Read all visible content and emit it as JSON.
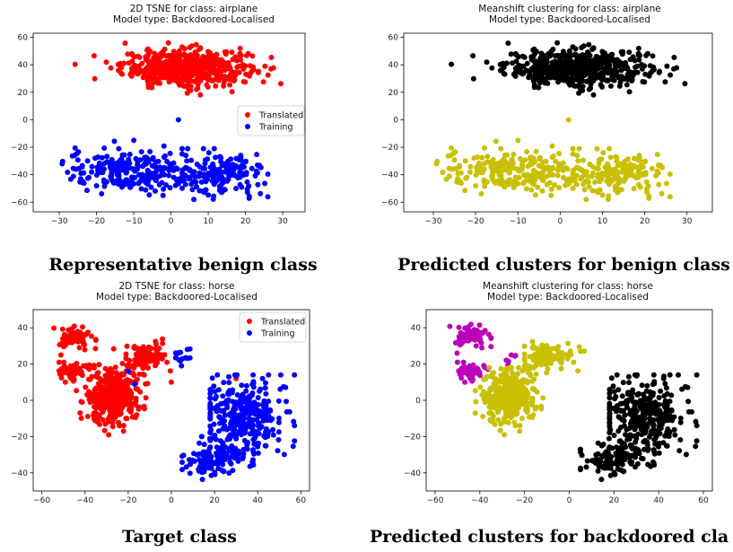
{
  "chart_data": [
    {
      "type": "scatter",
      "title": "2D TSNE for class: airplane",
      "subtitle": "Model type: Backdoored-Localised",
      "caption": "Representative benign class",
      "xlim": [
        -37,
        36
      ],
      "ylim": [
        -67,
        63
      ],
      "xticks": [
        -30,
        -20,
        -10,
        0,
        10,
        20,
        30
      ],
      "yticks": [
        60,
        40,
        20,
        0,
        -20,
        -40,
        -60
      ],
      "legend": "center-right",
      "series": [
        {
          "name": "Translated",
          "color": "#ff0000",
          "blobs": [
            {
              "cx": 4,
              "cy": 38,
              "sx": 8.5,
              "sy": 6.5,
              "xmin": -26,
              "xmax": 33,
              "ymin": 17,
              "ymax": 56,
              "n": 560
            }
          ],
          "extra": []
        },
        {
          "name": "Training",
          "color": "#0000ff",
          "blobs": [
            {
              "cx": -10,
              "cy": -38,
              "sx": 9,
              "sy": 8,
              "xmin": -35,
              "xmax": 10,
              "ymin": -61,
              "ymax": -15,
              "n": 240
            },
            {
              "cx": 14,
              "cy": -40,
              "sx": 6,
              "sy": 8,
              "xmin": 3,
              "xmax": 26,
              "ymin": -58,
              "ymax": -21,
              "n": 160
            }
          ],
          "extra": [
            [
              2,
              0
            ]
          ]
        }
      ]
    },
    {
      "type": "scatter",
      "title": "Meanshift clustering for class: airplane",
      "subtitle": "Model type: Backdoored-Localised",
      "caption": "Predicted clusters for benign class",
      "xlim": [
        -37,
        36
      ],
      "ylim": [
        -67,
        63
      ],
      "xticks": [
        -30,
        -20,
        -10,
        0,
        10,
        20,
        30
      ],
      "yticks": [
        60,
        40,
        20,
        0,
        -20,
        -40,
        -60
      ],
      "series": [
        {
          "color": "#000000",
          "blobs": [
            {
              "cx": 4,
              "cy": 38,
              "sx": 8.5,
              "sy": 6.5,
              "xmin": -26,
              "xmax": 33,
              "ymin": 17,
              "ymax": 56,
              "n": 560
            }
          ],
          "extra": []
        },
        {
          "color": "#c8c000",
          "blobs": [
            {
              "cx": -10,
              "cy": -38,
              "sx": 9,
              "sy": 8,
              "xmin": -35,
              "xmax": 10,
              "ymin": -61,
              "ymax": -15,
              "n": 240
            },
            {
              "cx": 14,
              "cy": -40,
              "sx": 6,
              "sy": 8,
              "xmin": 3,
              "xmax": 26,
              "ymin": -58,
              "ymax": -21,
              "n": 160
            }
          ],
          "extra": [
            [
              2,
              0
            ]
          ]
        }
      ]
    },
    {
      "type": "scatter",
      "title": "2D TSNE for class: horse",
      "subtitle": "Model type: Backdoored-Localised",
      "caption": "Target class",
      "xlim": [
        -64,
        64
      ],
      "ylim": [
        -50,
        50
      ],
      "xticks": [
        -60,
        -40,
        -20,
        0,
        20,
        40,
        60
      ],
      "yticks": [
        40,
        20,
        0,
        -20,
        -40
      ],
      "legend": "top-right",
      "series": [
        {
          "name": "Translated",
          "color": "#ff0000",
          "blobs": [
            {
              "cx": -45,
              "cy": 35,
              "sx": 4,
              "sy": 3,
              "xmin": -57,
              "xmax": -35,
              "ymin": 25,
              "ymax": 46,
              "n": 70
            },
            {
              "cx": -46,
              "cy": 16,
              "sx": 4,
              "sy": 2.5,
              "xmin": -52,
              "xmax": -38,
              "ymin": 10,
              "ymax": 21,
              "n": 50
            },
            {
              "cx": -27,
              "cy": 3,
              "sx": 6,
              "sy": 8,
              "xmin": -44,
              "xmax": -11,
              "ymin": -19,
              "ymax": 30,
              "n": 380
            },
            {
              "cx": -12,
              "cy": 24,
              "sx": 5,
              "sy": 4,
              "xmin": -21,
              "xmax": 0,
              "ymin": 12,
              "ymax": 34,
              "n": 90
            }
          ],
          "extra": [
            [
              0,
              10
            ],
            [
              30,
              12
            ]
          ]
        },
        {
          "name": "Training",
          "color": "#0000ff",
          "blobs": [
            {
              "cx": 33,
              "cy": -10,
              "sx": 10,
              "sy": 11,
              "xmin": 18,
              "xmax": 57,
              "ymin": -35,
              "ymax": 14,
              "n": 320
            },
            {
              "cx": 20,
              "cy": -32,
              "sx": 9,
              "sy": 5,
              "xmin": 5,
              "xmax": 38,
              "ymin": -44,
              "ymax": -20,
              "n": 110
            },
            {
              "cx": 5,
              "cy": 25,
              "sx": 2.5,
              "sy": 4,
              "xmin": 2,
              "xmax": 10,
              "ymin": 19,
              "ymax": 33,
              "n": 14
            }
          ],
          "extra": [
            [
              -20,
              16
            ],
            [
              -17,
              9
            ]
          ]
        }
      ]
    },
    {
      "type": "scatter",
      "title": "Meanshift clustering for class: horse",
      "subtitle": "Model type: Backdoored-Localised",
      "caption": "Predicted clusters for backdoored cla",
      "xlim": [
        -64,
        64
      ],
      "ylim": [
        -50,
        50
      ],
      "xticks": [
        -60,
        -40,
        -20,
        0,
        20,
        40,
        60
      ],
      "yticks": [
        40,
        20,
        0,
        -20,
        -40
      ],
      "series": [
        {
          "color": "#bb00bb",
          "blobs": [
            {
              "cx": -44,
              "cy": 36,
              "sx": 4,
              "sy": 3,
              "xmin": -55,
              "xmax": -35,
              "ymin": 26,
              "ymax": 44,
              "n": 70
            },
            {
              "cx": -44,
              "cy": 16,
              "sx": 3.5,
              "sy": 2.5,
              "xmin": -50,
              "xmax": -36,
              "ymin": 10,
              "ymax": 21,
              "n": 45
            },
            {
              "cx": -27,
              "cy": 22,
              "sx": 2,
              "sy": 2,
              "xmin": -30,
              "xmax": -24,
              "ymin": 18,
              "ymax": 25,
              "n": 6
            }
          ],
          "extra": []
        },
        {
          "color": "#c8c000",
          "blobs": [
            {
              "cx": -27,
              "cy": 3,
              "sx": 6,
              "sy": 8,
              "xmin": -42,
              "xmax": -10,
              "ymin": -19,
              "ymax": 18,
              "n": 320
            },
            {
              "cx": -10,
              "cy": 24,
              "sx": 6,
              "sy": 4,
              "xmin": -20,
              "xmax": 10,
              "ymin": 14,
              "ymax": 36,
              "n": 110
            }
          ],
          "extra": []
        },
        {
          "color": "#000000",
          "blobs": [
            {
              "cx": 33,
              "cy": -10,
              "sx": 10,
              "sy": 11,
              "xmin": 18,
              "xmax": 57,
              "ymin": -35,
              "ymax": 14,
              "n": 320
            },
            {
              "cx": 20,
              "cy": -32,
              "sx": 9,
              "sy": 5,
              "xmin": 5,
              "xmax": 38,
              "ymin": -44,
              "ymax": -20,
              "n": 110
            }
          ],
          "extra": []
        }
      ]
    }
  ]
}
